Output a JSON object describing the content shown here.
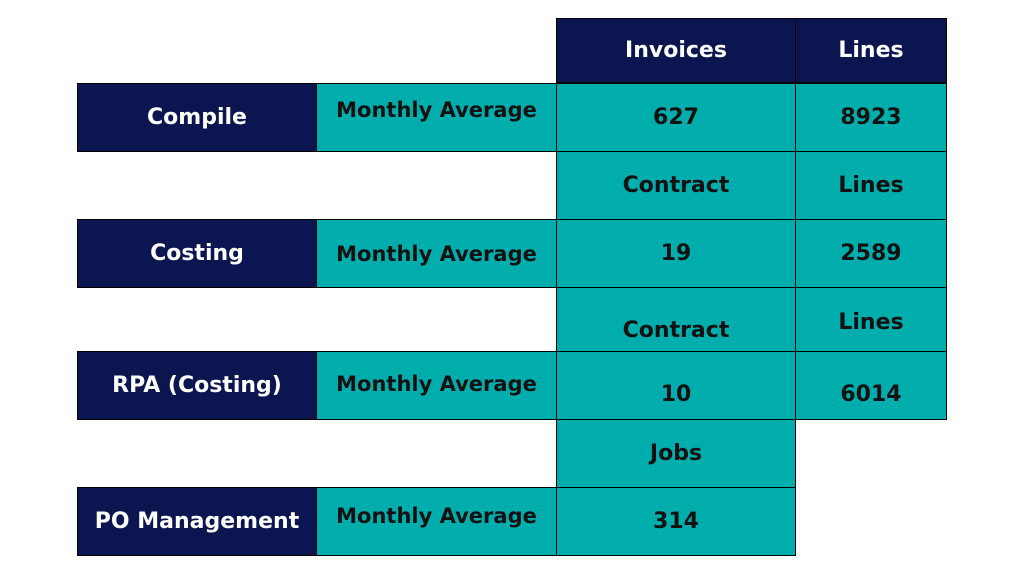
{
  "colors": {
    "navy": "#0b1550",
    "teal": "#00adad",
    "background": "#ffffff"
  },
  "header": {
    "col1": "Invoices",
    "col2": "Lines"
  },
  "rows": [
    {
      "name": "Compile",
      "period": "Monthly Average",
      "value1": "627",
      "value2": "8923"
    },
    {
      "subheader1": "Contract",
      "subheader2": "Lines",
      "name": "Costing",
      "period": "Monthly Average",
      "value1": "19",
      "value2": "2589"
    },
    {
      "subheader1": "Contract",
      "subheader2": "Lines",
      "name": "RPA (Costing)",
      "period": "Monthly Average",
      "value1": "10",
      "value2": "6014"
    },
    {
      "subheader1": "Jobs",
      "name": "PO Management",
      "period": "Monthly Average",
      "value1": "314"
    }
  ]
}
